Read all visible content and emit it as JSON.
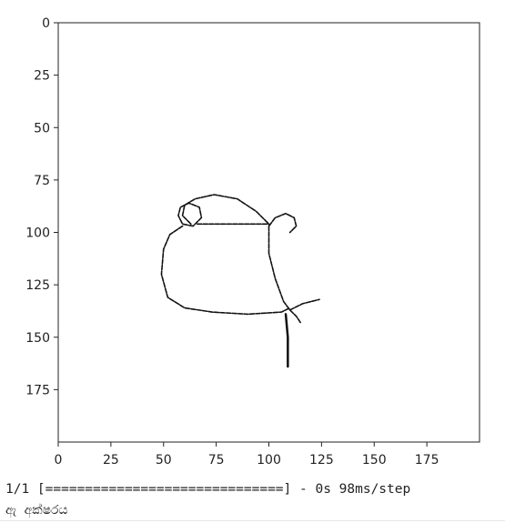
{
  "chart_data": {
    "type": "image",
    "title": "",
    "xlabel": "",
    "ylabel": "",
    "xlim": [
      0,
      200
    ],
    "ylim": [
      200,
      0
    ],
    "x_ticks": [
      0,
      25,
      50,
      75,
      100,
      125,
      150,
      175
    ],
    "y_ticks": [
      0,
      25,
      50,
      75,
      100,
      125,
      150,
      175
    ],
    "x_tick_labels": [
      "0",
      "25",
      "50",
      "75",
      "100",
      "125",
      "150",
      "175"
    ],
    "y_tick_labels": [
      "0",
      "25",
      "50",
      "75",
      "100",
      "125",
      "150",
      "175"
    ],
    "grid": false,
    "background_color": "#ffffff",
    "stroke_color": "#111111",
    "strokes": [
      {
        "name": "top-arc",
        "points": [
          [
            63,
            96
          ],
          [
            59,
            92
          ],
          [
            60,
            87
          ],
          [
            65,
            84
          ],
          [
            74,
            82
          ],
          [
            85,
            84
          ],
          [
            94,
            90
          ],
          [
            100,
            96
          ]
        ]
      },
      {
        "name": "left-loop",
        "points": [
          [
            64,
            97
          ],
          [
            59,
            96
          ],
          [
            57,
            92
          ],
          [
            58,
            88
          ],
          [
            62,
            86
          ],
          [
            67,
            88
          ],
          [
            68,
            93
          ],
          [
            64,
            97
          ]
        ]
      },
      {
        "name": "crossbar",
        "points": [
          [
            66,
            96
          ],
          [
            80,
            96
          ],
          [
            100,
            96
          ]
        ]
      },
      {
        "name": "right-loop",
        "points": [
          [
            100,
            97
          ],
          [
            103,
            93
          ],
          [
            108,
            91
          ],
          [
            112,
            93
          ],
          [
            113,
            97
          ],
          [
            110,
            100
          ]
        ]
      },
      {
        "name": "body-bowl",
        "points": [
          [
            59,
            97
          ],
          [
            53,
            101
          ],
          [
            50,
            108
          ],
          [
            49,
            120
          ],
          [
            52,
            131
          ],
          [
            60,
            136
          ],
          [
            73,
            138
          ],
          [
            90,
            139
          ],
          [
            106,
            138
          ],
          [
            110,
            136
          ]
        ]
      },
      {
        "name": "stem",
        "points": [
          [
            100,
            97
          ],
          [
            100,
            110
          ],
          [
            103,
            122
          ],
          [
            107,
            133
          ],
          [
            110,
            137
          ]
        ]
      },
      {
        "name": "tail-upper",
        "points": [
          [
            110,
            137
          ],
          [
            116,
            134
          ],
          [
            124,
            132
          ]
        ]
      },
      {
        "name": "tail-down",
        "points": [
          [
            108,
            139
          ],
          [
            109,
            150
          ],
          [
            109,
            160
          ],
          [
            109,
            164
          ]
        ]
      },
      {
        "name": "tail-fork",
        "points": [
          [
            110,
            137
          ],
          [
            113,
            140
          ],
          [
            115,
            143
          ]
        ]
      }
    ]
  },
  "console": {
    "progress": "1/1 [==============================] - 0s 98ms/step",
    "result": "ඇ අක්ෂරය"
  }
}
